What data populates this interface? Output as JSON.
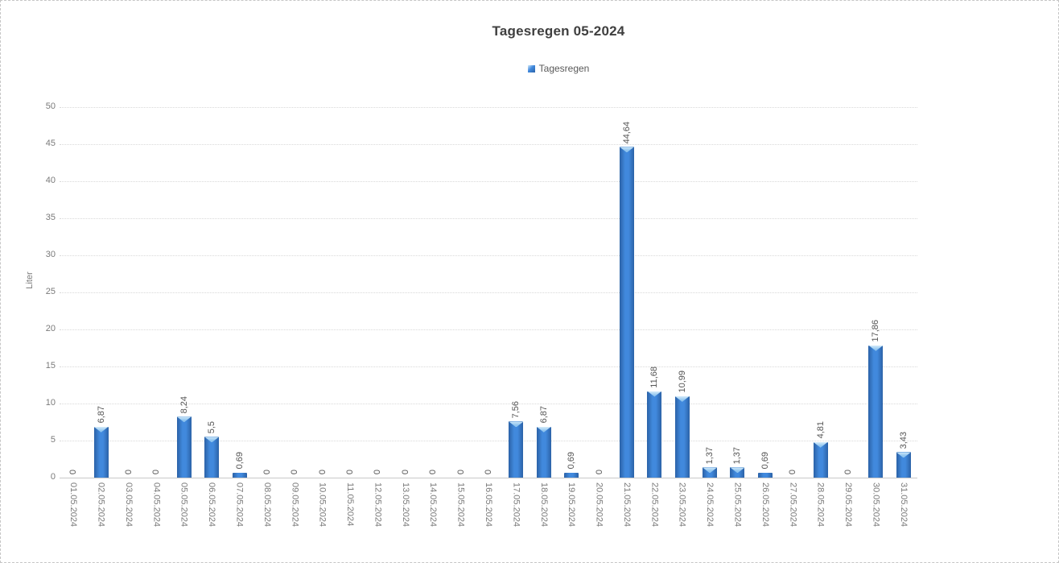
{
  "chart_data": {
    "type": "bar",
    "title": "Tagesregen 05-2024",
    "legend": {
      "position": "top",
      "entries": [
        {
          "label": "Tagesregen",
          "color": "#4189dd"
        }
      ]
    },
    "xlabel": "",
    "ylabel": "Liter",
    "ylim": [
      0,
      50
    ],
    "ytick_step": 5,
    "yticks": [
      0,
      5,
      10,
      15,
      20,
      25,
      30,
      35,
      40,
      45,
      50
    ],
    "grid": "horizontal-dotted",
    "categories": [
      "01.05.2024",
      "02.05.2024",
      "03.05.2024",
      "04.05.2024",
      "05.05.2024",
      "06.05.2024",
      "07.05.2024",
      "08.05.2024",
      "09.05.2024",
      "10.05.2024",
      "11.05.2024",
      "12.05.2024",
      "13.05.2024",
      "14.05.2024",
      "15.05.2024",
      "16.05.2024",
      "17.05.2024",
      "18.05.2024",
      "19.05.2024",
      "20.05.2024",
      "21.05.2024",
      "22.05.2024",
      "23.05.2024",
      "24.05.2024",
      "25.05.2024",
      "26.05.2024",
      "27.05.2024",
      "28.05.2024",
      "29.05.2024",
      "30.05.2024",
      "31.05.2024"
    ],
    "series": [
      {
        "name": "Tagesregen",
        "values": [
          0,
          6.87,
          0,
          0,
          8.24,
          5.5,
          0.69,
          0,
          0,
          0,
          0,
          0,
          0,
          0,
          0,
          0,
          7.56,
          6.87,
          0.69,
          0,
          44.64,
          11.68,
          10.99,
          1.37,
          1.37,
          0.69,
          0,
          4.81,
          0,
          17.86,
          3.43
        ],
        "data_labels": [
          "0",
          "6,87",
          "0",
          "0",
          "8,24",
          "5,5",
          "0,69",
          "0",
          "0",
          "0",
          "0",
          "0",
          "0",
          "0",
          "0",
          "0",
          "7,56",
          "6,87",
          "0,69",
          "0",
          "44,64",
          "11,68",
          "10,99",
          "1,37",
          "1,37",
          "0,69",
          "0",
          "4,81",
          "0",
          "17,86",
          "3,43"
        ]
      }
    ],
    "colors": {
      "bar_edge": "#2b62a7",
      "bar_center": "#4189dd",
      "bar_cap_light": "#d4ebfa",
      "gridline": "#d9d9d9",
      "axis_line": "#c9c9c9",
      "tick_text": "#7a7a7a",
      "label_text": "#555555",
      "title_text": "#3f3f3f"
    }
  }
}
